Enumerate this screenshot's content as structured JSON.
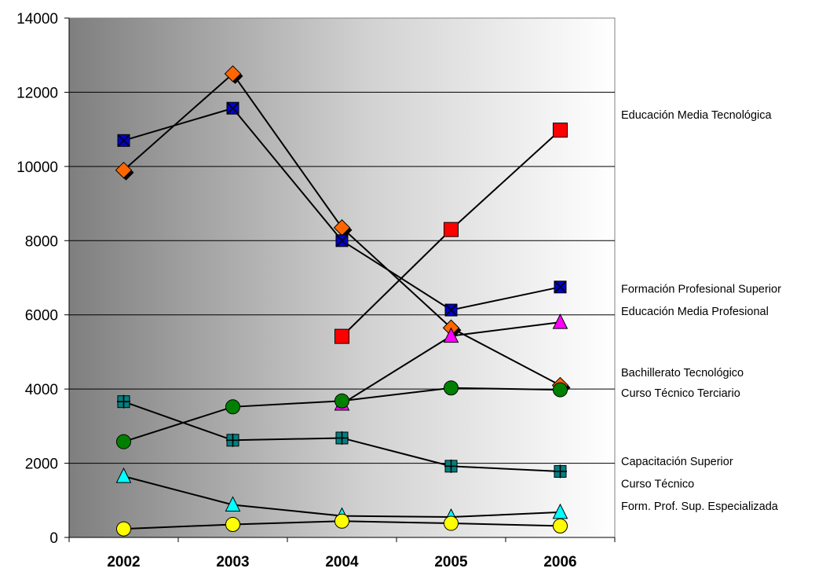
{
  "chart_data": {
    "type": "line",
    "categories": [
      "2002",
      "2003",
      "2004",
      "2005",
      "2006"
    ],
    "ylim": [
      0,
      14000
    ],
    "yticks": [
      0,
      2000,
      4000,
      6000,
      8000,
      10000,
      12000,
      14000
    ],
    "grid": "horizontal",
    "legend_placement": "right",
    "background": "horizontal gradient dark gray to white",
    "series": [
      {
        "name": "Educación Media Tecnológica",
        "marker": "diamond",
        "color": "#ff6600",
        "values": [
          9900,
          12500,
          8350,
          5650,
          4100
        ]
      },
      {
        "name": "Formación Profesional Superior",
        "marker": "square-x",
        "color": "#0000cc",
        "values": [
          10700,
          11570,
          8000,
          6130,
          6750
        ]
      },
      {
        "name": "Educación Media Profesional",
        "marker": "square",
        "color": "#ff0000",
        "values": [
          null,
          null,
          5420,
          8300,
          10980
        ]
      },
      {
        "name": "Bachillerato Tecnológico",
        "marker": "triangle",
        "color": "#ff00ff",
        "values": [
          null,
          null,
          3600,
          5430,
          5800
        ]
      },
      {
        "name": "Curso Técnico Terciario",
        "marker": "circle",
        "color": "#008000",
        "values": [
          2580,
          3520,
          3680,
          4030,
          3980
        ]
      },
      {
        "name": "Capacitación Superior",
        "marker": "square-plus",
        "color": "#008080",
        "values": [
          3660,
          2620,
          2680,
          1920,
          1780
        ]
      },
      {
        "name": "Curso Técnico",
        "marker": "triangle",
        "color": "#00ffff",
        "values": [
          1650,
          880,
          580,
          550,
          680
        ]
      },
      {
        "name": "Form. Prof. Sup. Especializada",
        "marker": "circle",
        "color": "#ffff00",
        "values": [
          230,
          350,
          440,
          380,
          310
        ]
      }
    ],
    "legend": [
      {
        "label": "Educación Media Tecnológica",
        "value_anchor": 11400
      },
      {
        "label": "Formación Profesional Superior",
        "value_anchor": 6700
      },
      {
        "label": "Educación Media Profesional",
        "value_anchor": 6100
      },
      {
        "label": "Bachillerato Tecnológico",
        "value_anchor": 4450
      },
      {
        "label": "Curso Técnico Terciario",
        "value_anchor": 3900
      },
      {
        "label": "Capacitación Superior",
        "value_anchor": 2050
      },
      {
        "label": "Curso Técnico",
        "value_anchor": 1450
      },
      {
        "label": "Form. Prof. Sup. Especializada",
        "value_anchor": 850
      }
    ]
  }
}
